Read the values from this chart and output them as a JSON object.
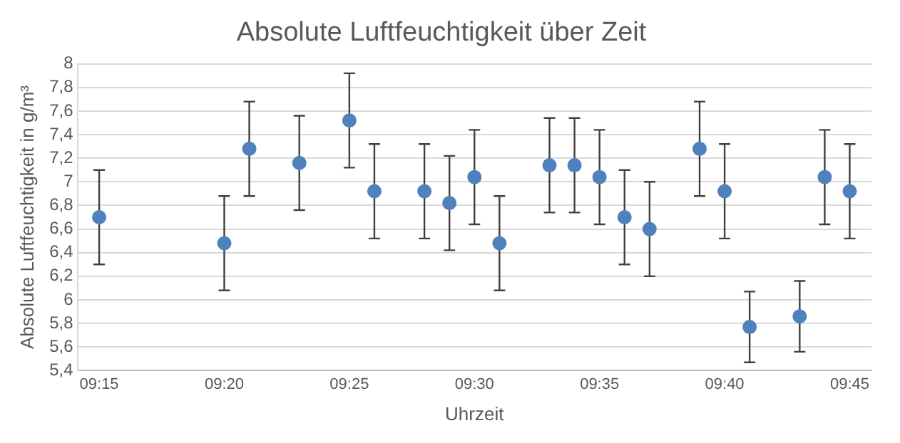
{
  "chart_data": {
    "type": "scatter",
    "title": "Absolute Luftfeuchtigkeit über Zeit",
    "xlabel": "Uhrzeit",
    "ylabel": "Absolute Luftfeuchtigkeit in g/m³",
    "x": [
      9.25,
      9.333333,
      9.35,
      9.383333,
      9.416667,
      9.433333,
      9.466667,
      9.483333,
      9.5,
      9.516667,
      9.55,
      9.566667,
      9.583333,
      9.6,
      9.616667,
      9.65,
      9.666667,
      9.683333,
      9.716667,
      9.733333,
      9.75
    ],
    "series": [
      {
        "color": "#4f81bd",
        "values": [
          6.7,
          6.48,
          7.28,
          7.16,
          7.52,
          6.92,
          6.92,
          6.82,
          7.04,
          6.48,
          7.14,
          7.14,
          7.04,
          6.7,
          6.6,
          7.28,
          6.92,
          5.77,
          5.86,
          7.04,
          6.92
        ],
        "errors": [
          0.4,
          0.4,
          0.4,
          0.4,
          0.4,
          0.4,
          0.4,
          0.4,
          0.4,
          0.4,
          0.4,
          0.4,
          0.4,
          0.4,
          0.4,
          0.4,
          0.4,
          0.3,
          0.3,
          0.4,
          0.4
        ]
      }
    ],
    "xlim": [
      9.2355,
      9.7645
    ],
    "xticks": [
      {
        "value": 9.25,
        "label": "09:15"
      },
      {
        "value": 9.333333,
        "label": "09:20"
      },
      {
        "value": 9.416667,
        "label": "09:25"
      },
      {
        "value": 9.5,
        "label": "09:30"
      },
      {
        "value": 9.583333,
        "label": "09:35"
      },
      {
        "value": 9.666667,
        "label": "09:40"
      },
      {
        "value": 9.75,
        "label": "09:45"
      }
    ],
    "ylim": [
      5.4,
      8
    ],
    "yticks": [
      {
        "value": 5.4,
        "label": "5,4"
      },
      {
        "value": 5.6,
        "label": "5,6"
      },
      {
        "value": 5.8,
        "label": "5,8"
      },
      {
        "value": 6,
        "label": "6"
      },
      {
        "value": 6.2,
        "label": "6,2"
      },
      {
        "value": 6.4,
        "label": "6,4"
      },
      {
        "value": 6.6,
        "label": "6,6"
      },
      {
        "value": 6.8,
        "label": "6,8"
      },
      {
        "value": 7,
        "label": "7"
      },
      {
        "value": 7.2,
        "label": "7,2"
      },
      {
        "value": 7.4,
        "label": "7,4"
      },
      {
        "value": 7.6,
        "label": "7,6"
      },
      {
        "value": 7.8,
        "label": "7,8"
      },
      {
        "value": 8,
        "label": "8"
      }
    ],
    "grid": "y",
    "marker": "circle",
    "legend": false
  }
}
